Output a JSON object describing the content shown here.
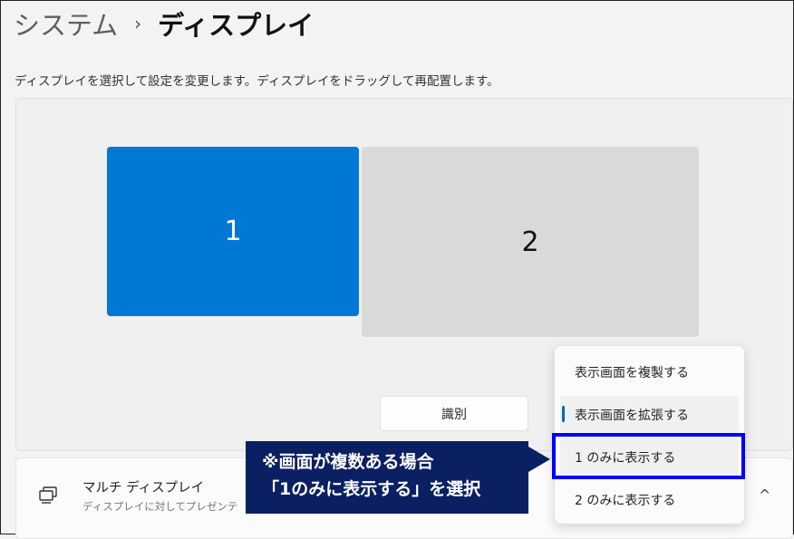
{
  "breadcrumb": {
    "parent": "システム",
    "separator": "›",
    "current": "ディスプレイ"
  },
  "description": "ディスプレイを選択して設定を変更します。ディスプレイをドラッグして再配置します。",
  "monitors": [
    {
      "label": "1",
      "selected": true,
      "color": "#0078d4"
    },
    {
      "label": "2",
      "selected": false,
      "color": "#d9d9d9"
    }
  ],
  "identify_button": "識別",
  "multi_display": {
    "title": "マルチ ディスプレイ",
    "subtitle": "ディスプレイに対してプレゼンテ",
    "icon": "multi-monitor-icon",
    "chevron": "^"
  },
  "dropdown": {
    "items": [
      "表示画面を複製する",
      "表示画面を拡張する",
      "1 のみに表示する",
      "2 のみに表示する"
    ],
    "current_index": 1,
    "highlighted_index": 2
  },
  "callout": {
    "line1": "※画面が複数ある場合",
    "line2": "「1のみに表示する」を選択",
    "color": "#0a2062",
    "highlight_color": "#0000ff"
  }
}
